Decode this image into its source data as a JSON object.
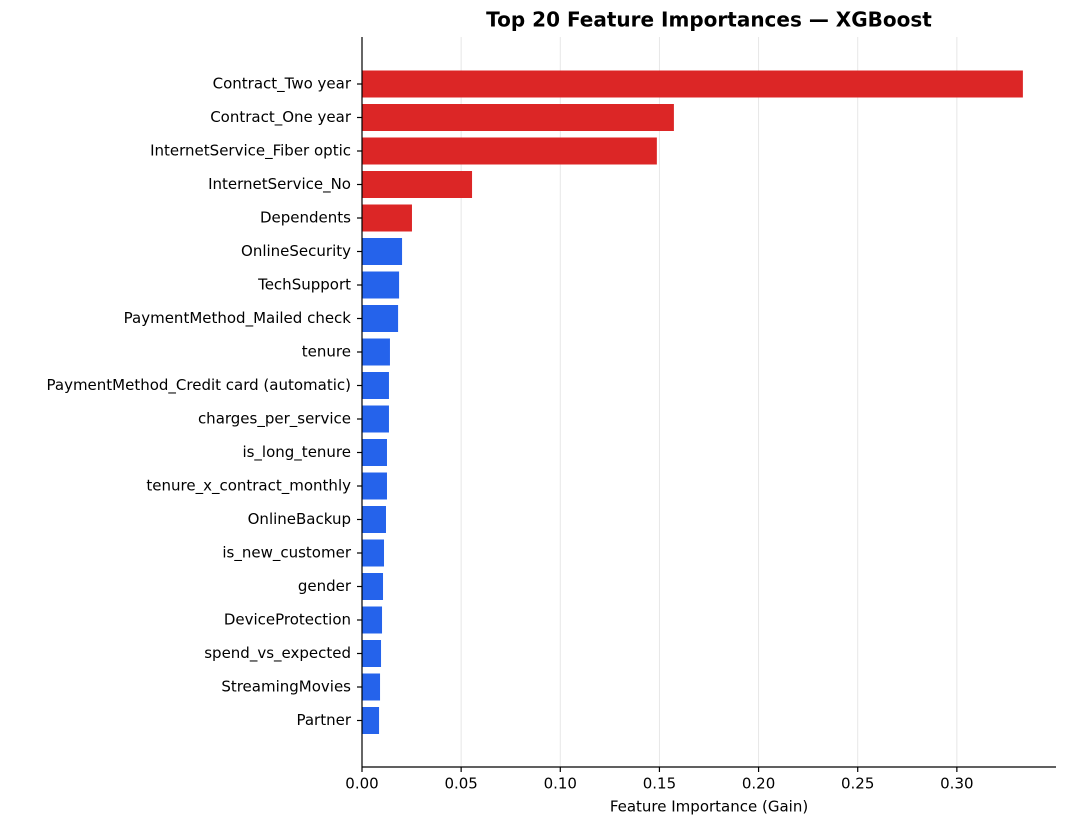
{
  "chart_data": {
    "type": "barh",
    "title": "Top 20 Feature Importances — XGBoost",
    "x_label": "Feature Importance (Gain)",
    "categories": [
      "Contract_Two year",
      "Contract_One year",
      "InternetService_Fiber optic",
      "InternetService_No",
      "Dependents",
      "OnlineSecurity",
      "TechSupport",
      "PaymentMethod_Mailed check",
      "tenure",
      "PaymentMethod_Credit card (automatic)",
      "charges_per_service",
      "is_long_tenure",
      "tenure_x_contract_monthly",
      "OnlineBackup",
      "is_new_customer",
      "gender",
      "DeviceProtection",
      "spend_vs_expected",
      "StreamingMovies",
      "Partner"
    ],
    "values": [
      0.3333,
      0.1573,
      0.1487,
      0.0555,
      0.0252,
      0.0202,
      0.0187,
      0.0182,
      0.0141,
      0.0136,
      0.0136,
      0.0126,
      0.0126,
      0.0121,
      0.0111,
      0.0106,
      0.0101,
      0.0096,
      0.0091,
      0.0086
    ],
    "colors": [
      "#dc2626",
      "#dc2626",
      "#dc2626",
      "#dc2626",
      "#dc2626",
      "#2563eb",
      "#2563eb",
      "#2563eb",
      "#2563eb",
      "#2563eb",
      "#2563eb",
      "#2563eb",
      "#2563eb",
      "#2563eb",
      "#2563eb",
      "#2563eb",
      "#2563eb",
      "#2563eb",
      "#2563eb",
      "#2563eb"
    ],
    "xlim": [
      0,
      0.35
    ],
    "xticks": [
      {
        "value": 0,
        "label": "0.00"
      },
      {
        "value": 0.05,
        "label": "0.05"
      },
      {
        "value": 0.1,
        "label": "0.10"
      },
      {
        "value": 0.15,
        "label": "0.15"
      },
      {
        "value": 0.2,
        "label": "0.20"
      },
      {
        "value": 0.25,
        "label": "0.25"
      },
      {
        "value": 0.3,
        "label": "0.30"
      }
    ],
    "grid": true
  }
}
